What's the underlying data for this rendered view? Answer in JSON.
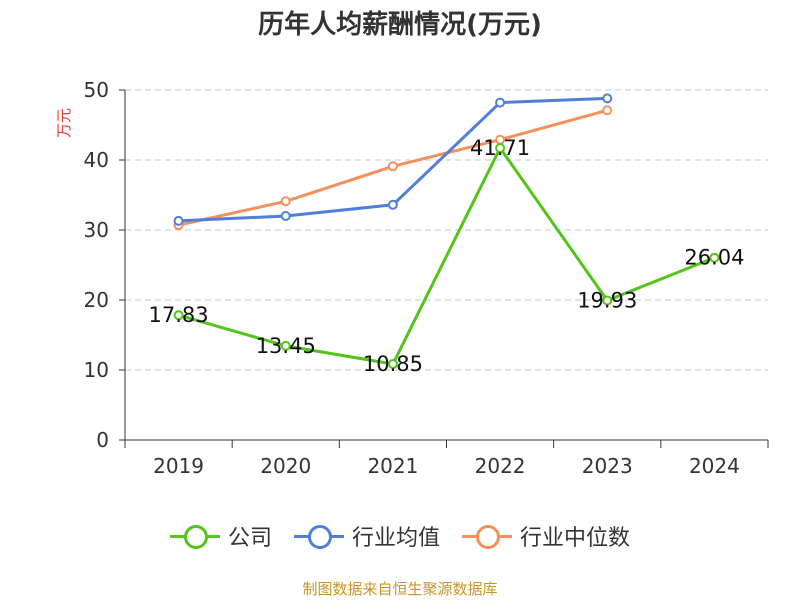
{
  "chart_data": {
    "type": "line",
    "title": "历年人均薪酬情况(万元)",
    "ylabel": "万元",
    "categories": [
      "2019",
      "2020",
      "2021",
      "2022",
      "2023",
      "2024"
    ],
    "ylim": [
      0,
      50
    ],
    "yticks": [
      0,
      10,
      20,
      30,
      40,
      50
    ],
    "grid": true,
    "legend_position": "bottom",
    "series": [
      {
        "name": "公司",
        "color": "#52c41a",
        "values": [
          17.83,
          13.45,
          10.85,
          41.71,
          19.93,
          26.04
        ],
        "labels": [
          "17.83",
          "13.45",
          "10.85",
          "41.71",
          "19.93",
          "26.04"
        ]
      },
      {
        "name": "行业均值",
        "color": "#4f7fdb",
        "values": [
          31.3,
          32.0,
          33.6,
          48.2,
          48.8,
          null
        ]
      },
      {
        "name": "行业中位数",
        "color": "#f4905c",
        "values": [
          30.7,
          34.1,
          39.1,
          42.9,
          47.1,
          null
        ]
      }
    ]
  },
  "footer": {
    "source": "制图数据来自恒生聚源数据库"
  }
}
